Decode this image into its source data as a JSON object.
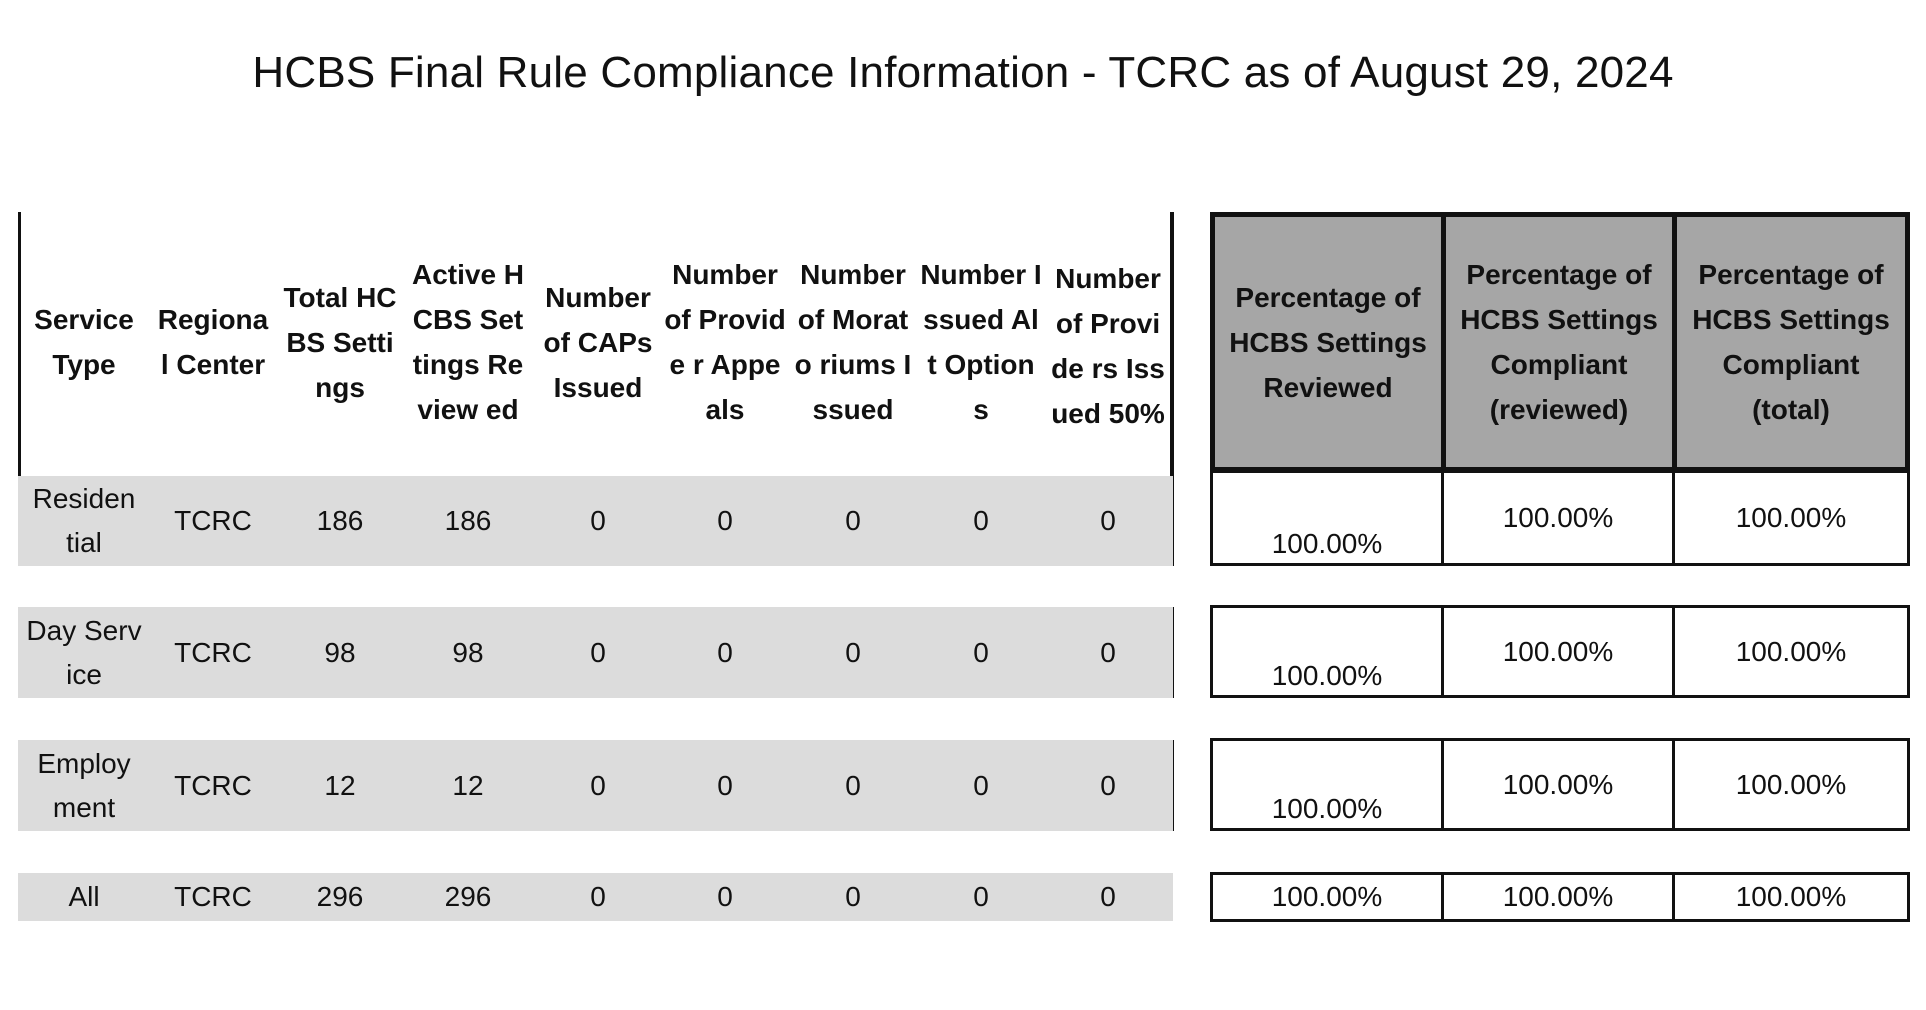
{
  "title": "HCBS Final Rule Compliance Information - TCRC as of August 29, 2024",
  "left_headers": [
    "Service Type",
    "Regiona l Center",
    "Total HCBS Settings",
    "Active HCBS Settings Review ed",
    "Number of CAPs Issued",
    "Number of Provide r Appeals",
    "Number of Morato riums Issued",
    "Number Issued Alt Options",
    "Number of Provide rs Issued 50%"
  ],
  "right_headers": [
    "Percentage of HCBS Settings Reviewed",
    "Percentage of HCBS Settings Compliant (reviewed)",
    "Percentage of HCBS Settings Compliant (total)"
  ],
  "rows": [
    {
      "cells": [
        "Residen tial",
        "TCRC",
        "186",
        "186",
        "0",
        "0",
        "0",
        "0",
        "0"
      ],
      "pct": [
        "100.00%",
        "100.00%",
        "100.00%"
      ]
    },
    {
      "cells": [
        "Day Service",
        "TCRC",
        "98",
        "98",
        "0",
        "0",
        "0",
        "0",
        "0"
      ],
      "pct": [
        "100.00%",
        "100.00%",
        "100.00%"
      ]
    },
    {
      "cells": [
        "Employ ment",
        "TCRC",
        "12",
        "12",
        "0",
        "0",
        "0",
        "0",
        "0"
      ],
      "pct": [
        "100.00%",
        "100.00%",
        "100.00%"
      ]
    },
    {
      "cells": [
        "All",
        "TCRC",
        "296",
        "296",
        "0",
        "0",
        "0",
        "0",
        "0"
      ],
      "pct": [
        "100.00%",
        "100.00%",
        "100.00%"
      ]
    }
  ]
}
